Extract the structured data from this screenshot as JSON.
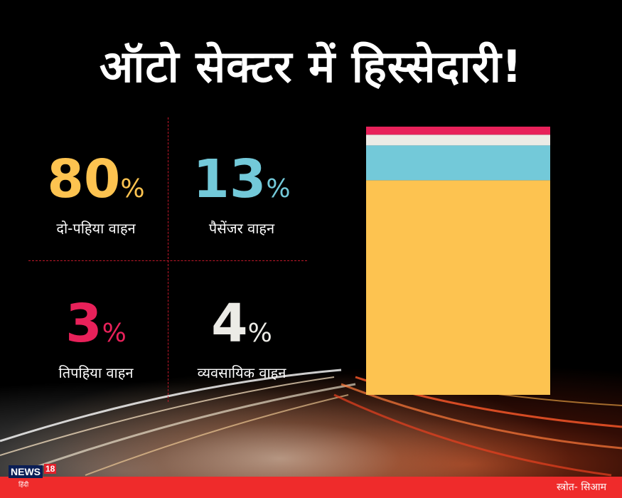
{
  "title": "ऑटो सेक्टर में हिस्सेदारी!",
  "stats": [
    {
      "value": "80",
      "unit": "%",
      "label": "दो-पहिया वाहन",
      "color": "#fdc350"
    },
    {
      "value": "13",
      "unit": "%",
      "label": "पैसेंजर वाहन",
      "color": "#73c9d9"
    },
    {
      "value": "3",
      "unit": "%",
      "label": "तिपहिया वाहन",
      "color": "#e8215a"
    },
    {
      "value": "4",
      "unit": "%",
      "label": "व्यवसायिक वाहन",
      "color": "#ecebe6"
    }
  ],
  "chart_data": {
    "type": "bar",
    "stacked": true,
    "unit": "%",
    "ylim": [
      0,
      100
    ],
    "series": [
      {
        "name": "दो-पहिया वाहन",
        "values": [
          80
        ],
        "color": "#fdc350"
      },
      {
        "name": "पैसेंजर वाहन",
        "values": [
          13
        ],
        "color": "#73c9d9"
      },
      {
        "name": "व्यवसायिक वाहन",
        "values": [
          4
        ],
        "color": "#ecebe6"
      },
      {
        "name": "तिपहिया वाहन",
        "values": [
          3
        ],
        "color": "#e8215a"
      }
    ]
  },
  "logo": {
    "brand": "NEWS",
    "number": "18",
    "sub": "हिंदी"
  },
  "source": "स्त्रोत- सिआम"
}
